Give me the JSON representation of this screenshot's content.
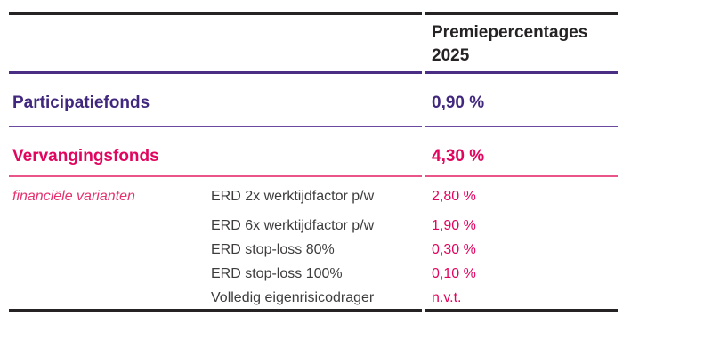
{
  "colors": {
    "accent_purple": "#41287e",
    "accent_pink": "#e2055f",
    "rule_black": "#262324",
    "body_text_gray": "#3e3c3c",
    "background": "#ffffff"
  },
  "table": {
    "header": {
      "value_column_title": "Premiepercentages 2025"
    },
    "funds": [
      {
        "name": "Participatiefonds",
        "value": "0,90 %"
      },
      {
        "name": "Vervangingsfonds",
        "value": "4,30 %"
      }
    ],
    "variants": {
      "label": "financiële varianten",
      "items": [
        {
          "name": "ERD 2x werktijdfactor p/w",
          "value": "2,80 %"
        },
        {
          "name": "ERD 6x werktijdfactor p/w",
          "value": "1,90 %"
        },
        {
          "name": "ERD stop-loss 80%",
          "value": "0,30 %"
        },
        {
          "name": "ERD stop-loss 100%",
          "value": "0,10 %"
        },
        {
          "name": "Volledig eigenrisicodrager",
          "value": "n.v.t."
        }
      ]
    }
  }
}
